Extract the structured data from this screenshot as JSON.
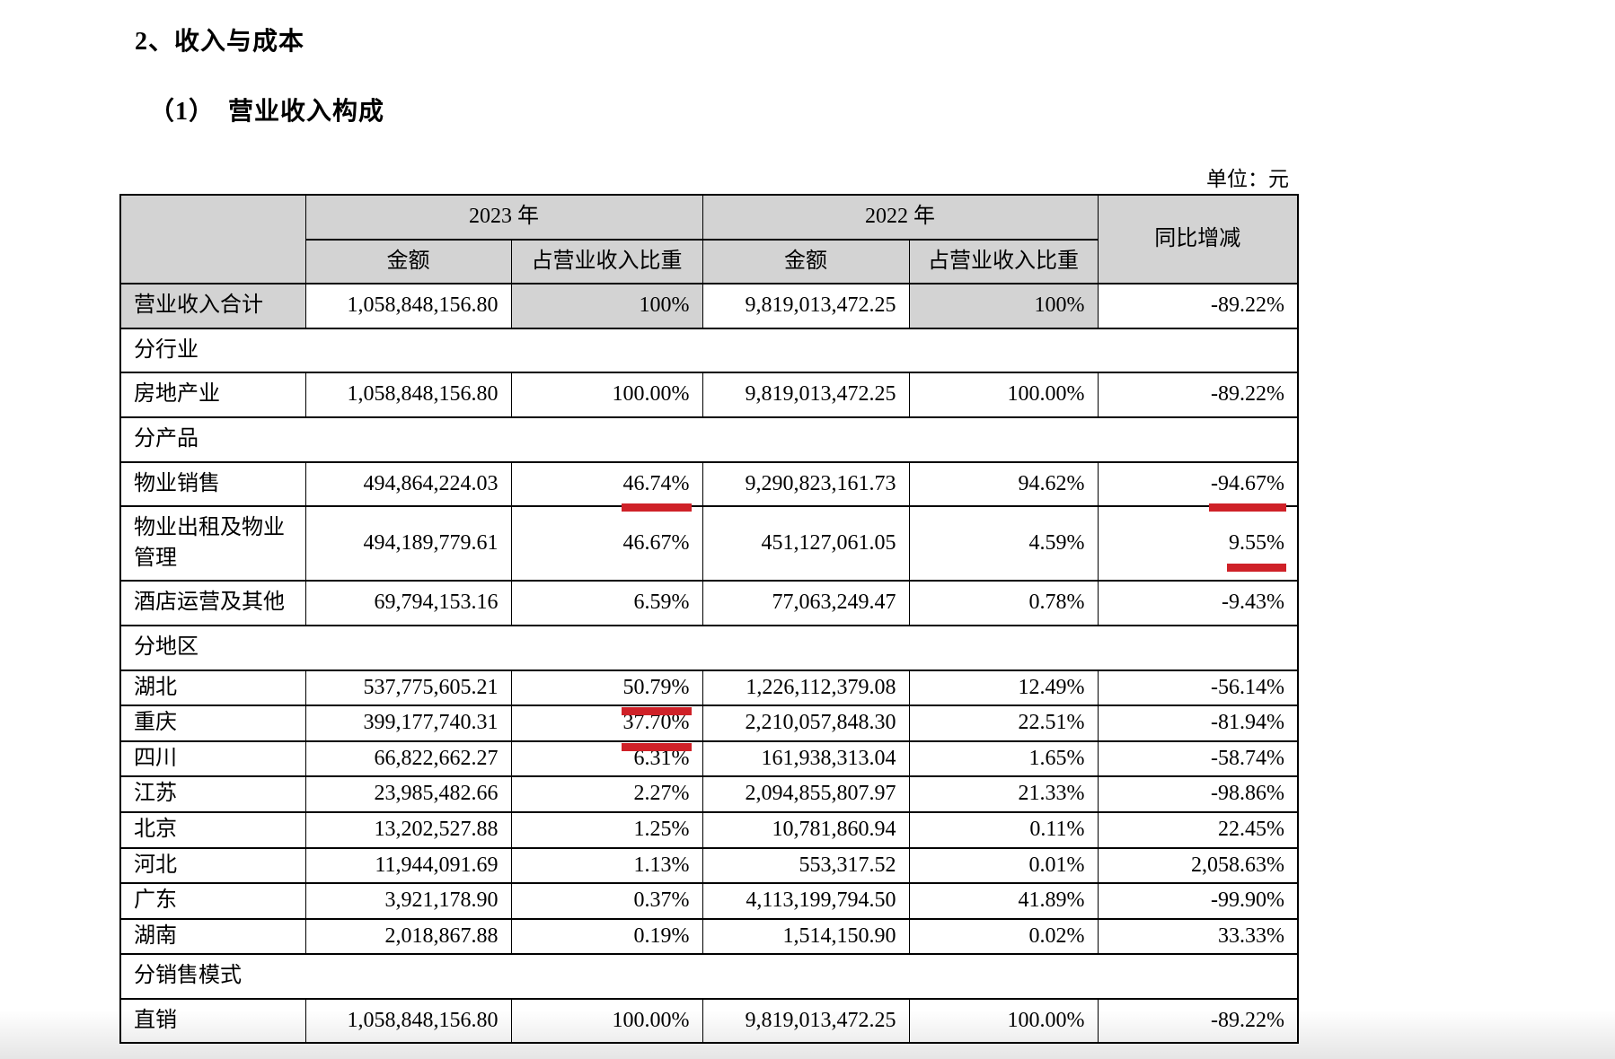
{
  "document": {
    "section_title": "2、收入与成本",
    "subsection_title": "（1）　营业收入构成",
    "unit_note": "单位：元"
  },
  "colors": {
    "header_gray": "#d3d3d3",
    "underline_red": "#cf2128",
    "border_black": "#000000"
  },
  "table": {
    "headers": {
      "year_2023": "2023 年",
      "year_2022": "2022 年",
      "yoy_change": "同比增减",
      "amount": "金额",
      "share_of_revenue": "占营业收入比重"
    },
    "rows": [
      {
        "type": "data",
        "label": "营业收入合计",
        "values": [
          "1,058,848,156.80",
          "100%",
          "9,819,013,472.25",
          "100%",
          "-89.22%"
        ]
      },
      {
        "type": "section",
        "label": "分行业"
      },
      {
        "type": "data",
        "label": "房地产业",
        "values": [
          "1,058,848,156.80",
          "100.00%",
          "9,819,013,472.25",
          "100.00%",
          "-89.22%"
        ]
      },
      {
        "type": "section",
        "label": "分产品"
      },
      {
        "type": "data",
        "label": "物业销售",
        "values": [
          "494,864,224.03",
          "46.74%",
          "9,290,823,161.73",
          "94.62%",
          "-94.67%"
        ],
        "underline": [
          1,
          4
        ]
      },
      {
        "type": "data",
        "label": "物业出租及物业管理",
        "values": [
          "494,189,779.61",
          "46.67%",
          "451,127,061.05",
          "4.59%",
          "9.55%"
        ],
        "underline": [
          4
        ]
      },
      {
        "type": "data",
        "label": "酒店运营及其他",
        "values": [
          "69,794,153.16",
          "6.59%",
          "77,063,249.47",
          "0.78%",
          "-9.43%"
        ]
      },
      {
        "type": "section",
        "label": "分地区"
      },
      {
        "type": "data",
        "label": "湖北",
        "values": [
          "537,775,605.21",
          "50.79%",
          "1,226,112,379.08",
          "12.49%",
          "-56.14%"
        ],
        "underline": [
          1
        ]
      },
      {
        "type": "data",
        "label": "重庆",
        "values": [
          "399,177,740.31",
          "37.70%",
          "2,210,057,848.30",
          "22.51%",
          "-81.94%"
        ],
        "underline": [
          1
        ]
      },
      {
        "type": "data",
        "label": "四川",
        "values": [
          "66,822,662.27",
          "6.31%",
          "161,938,313.04",
          "1.65%",
          "-58.74%"
        ]
      },
      {
        "type": "data",
        "label": "江苏",
        "values": [
          "23,985,482.66",
          "2.27%",
          "2,094,855,807.97",
          "21.33%",
          "-98.86%"
        ]
      },
      {
        "type": "data",
        "label": "北京",
        "values": [
          "13,202,527.88",
          "1.25%",
          "10,781,860.94",
          "0.11%",
          "22.45%"
        ]
      },
      {
        "type": "data",
        "label": "河北",
        "values": [
          "11,944,091.69",
          "1.13%",
          "553,317.52",
          "0.01%",
          "2,058.63%"
        ]
      },
      {
        "type": "data",
        "label": "广东",
        "values": [
          "3,921,178.90",
          "0.37%",
          "4,113,199,794.50",
          "41.89%",
          "-99.90%"
        ]
      },
      {
        "type": "data",
        "label": "湖南",
        "values": [
          "2,018,867.88",
          "0.19%",
          "1,514,150.90",
          "0.02%",
          "33.33%"
        ]
      },
      {
        "type": "section",
        "label": "分销售模式"
      },
      {
        "type": "data",
        "label": "直销",
        "values": [
          "1,058,848,156.80",
          "100.00%",
          "9,819,013,472.25",
          "100.00%",
          "-89.22%"
        ]
      }
    ]
  }
}
